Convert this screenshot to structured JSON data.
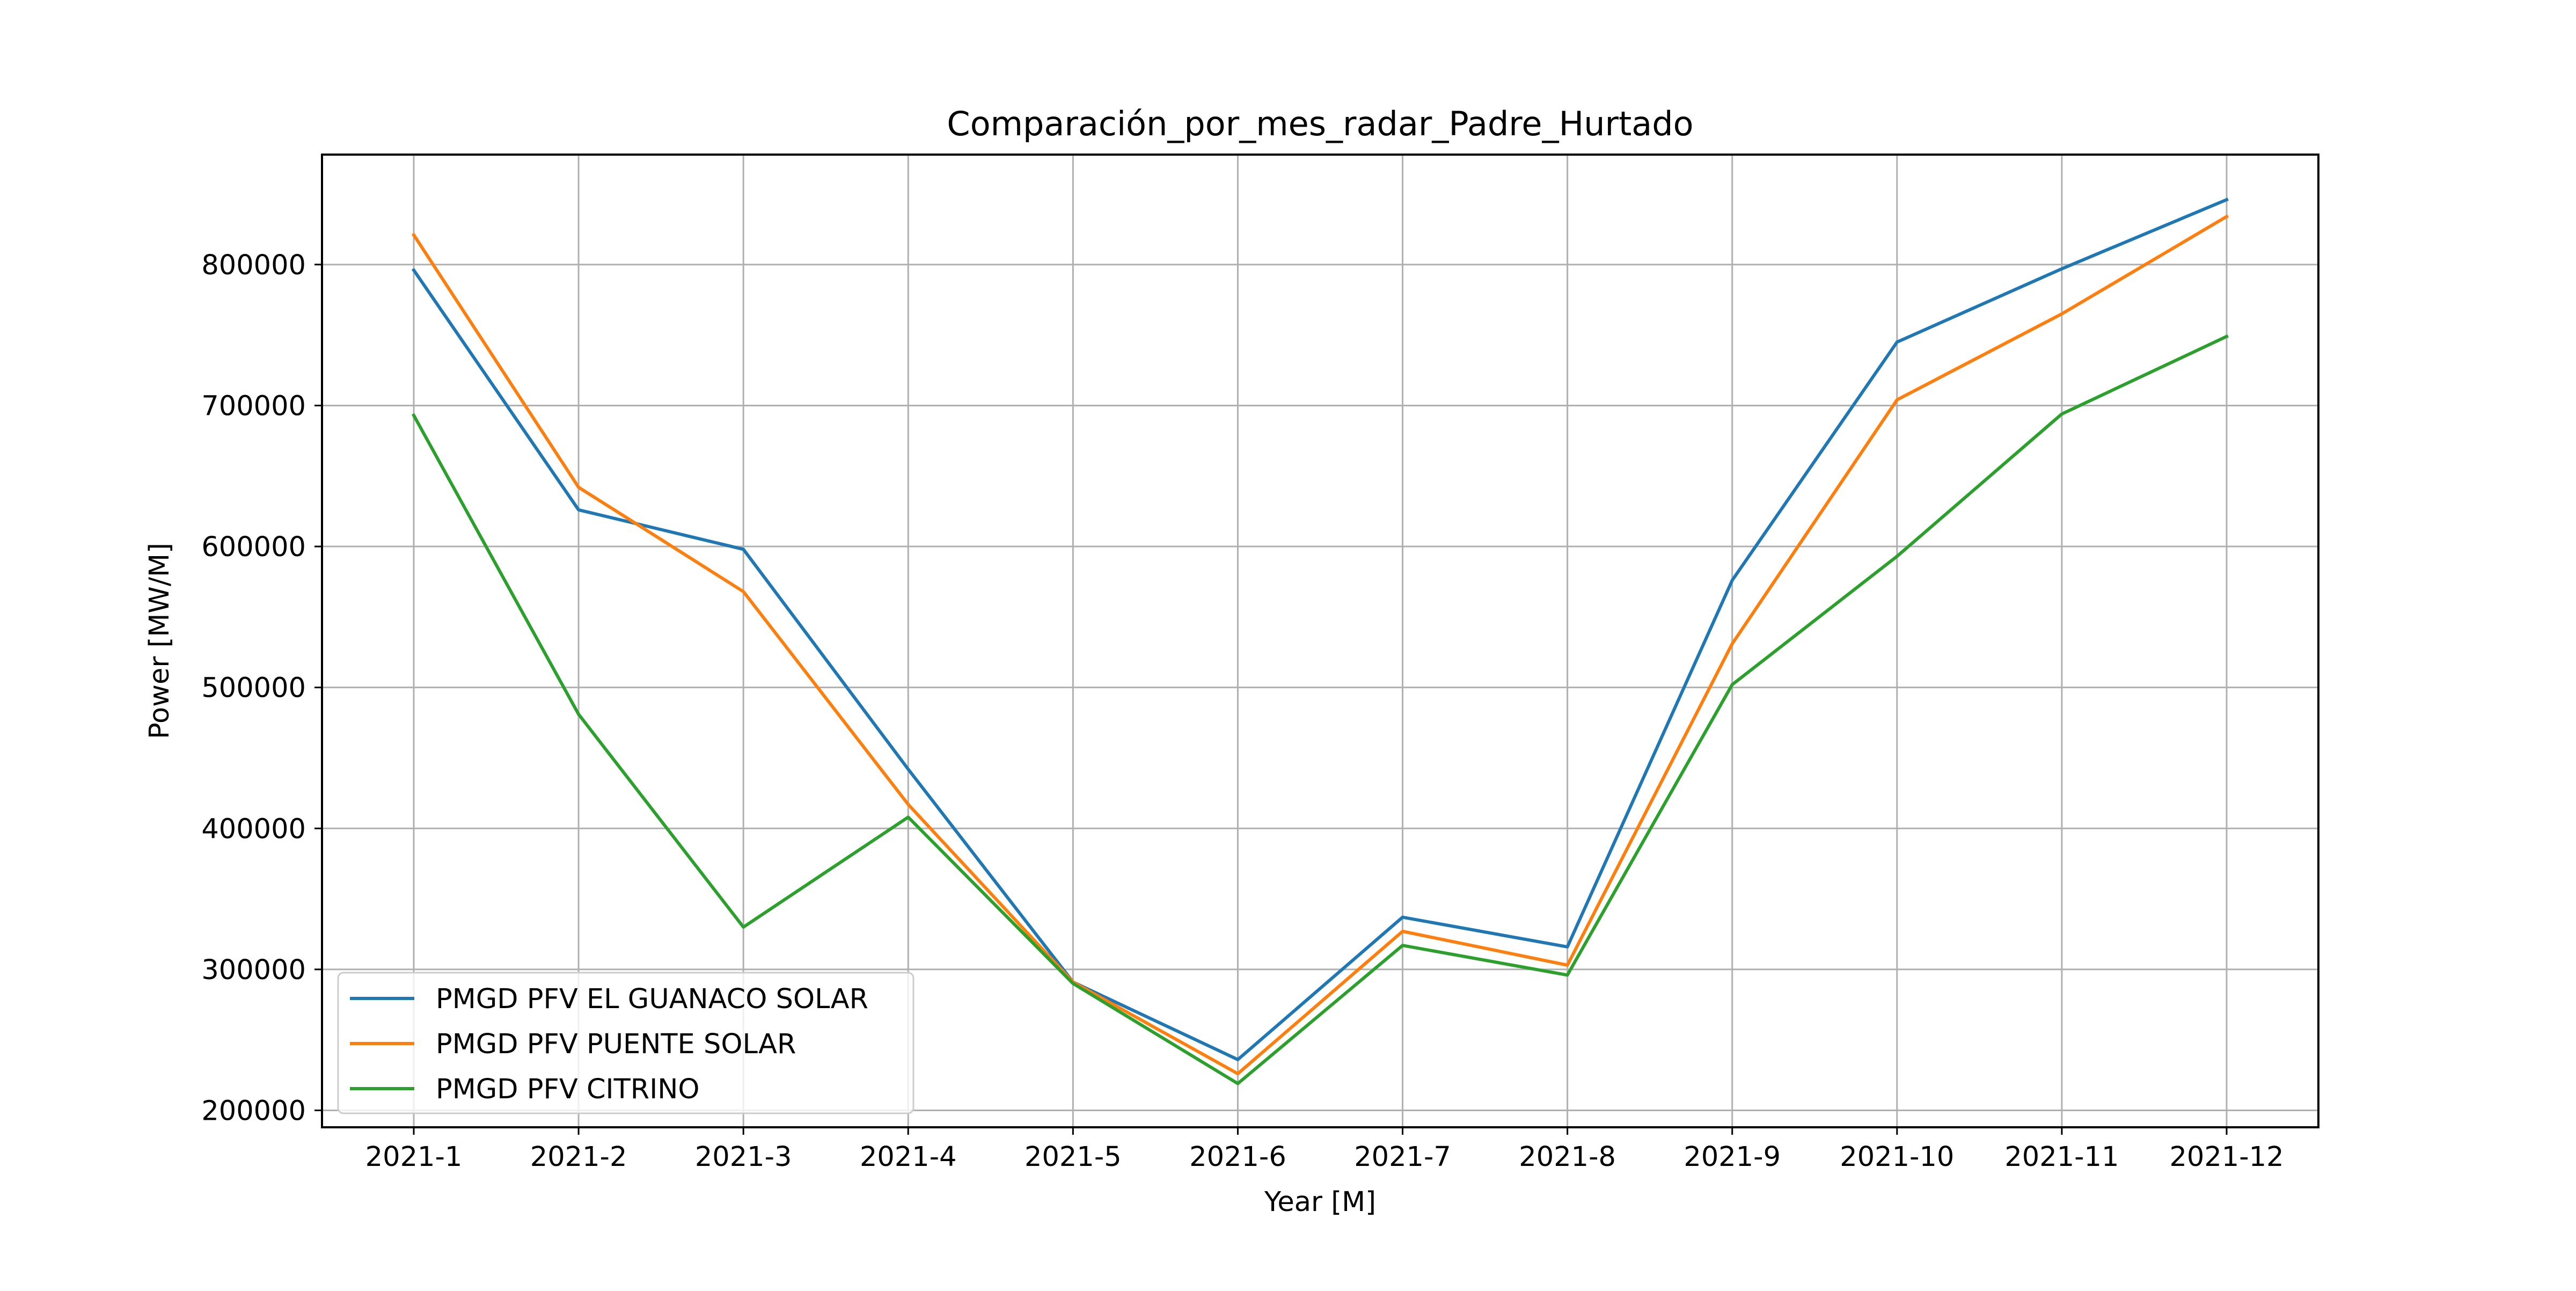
{
  "chart_data": {
    "type": "line",
    "title": "Comparación_por_mes_radar_Padre_Hurtado",
    "xlabel": "Year [M]",
    "ylabel": "Power [MW/M]",
    "categories": [
      "2021-1",
      "2021-2",
      "2021-3",
      "2021-4",
      "2021-5",
      "2021-6",
      "2021-7",
      "2021-8",
      "2021-9",
      "2021-10",
      "2021-11",
      "2021-12"
    ],
    "ylim": [
      188000,
      878000
    ],
    "yticks": [
      200000,
      300000,
      400000,
      500000,
      600000,
      700000,
      800000
    ],
    "ytick_labels": [
      "200000",
      "300000",
      "400000",
      "500000",
      "600000",
      "700000",
      "800000"
    ],
    "grid": true,
    "legend_position": "lower-left",
    "series": [
      {
        "name": "PMGD PFV EL GUANACO SOLAR",
        "color": "#1f77b4",
        "values": [
          796000,
          626000,
          598000,
          442000,
          291000,
          236000,
          337000,
          316000,
          576000,
          745000,
          797000,
          846000
        ]
      },
      {
        "name": "PMGD PFV PUENTE SOLAR",
        "color": "#ff7f0e",
        "values": [
          821000,
          642000,
          568000,
          417000,
          291000,
          226000,
          327000,
          303000,
          531000,
          704000,
          765000,
          834000
        ]
      },
      {
        "name": "PMGD PFV CITRINO",
        "color": "#2ca02c",
        "values": [
          693000,
          481000,
          330000,
          408000,
          290000,
          219000,
          317000,
          296000,
          502000,
          593000,
          694000,
          749000
        ]
      }
    ]
  }
}
